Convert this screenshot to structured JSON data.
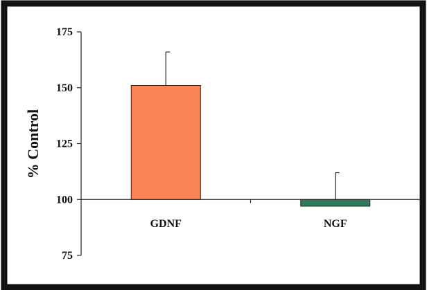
{
  "chart_data": {
    "type": "bar",
    "title": "",
    "xlabel": "",
    "ylabel": "% Control",
    "ylim": [
      75,
      175
    ],
    "yticks": [
      75,
      100,
      125,
      150,
      175
    ],
    "baseline": 100,
    "grid": false,
    "legend": "none",
    "categories": [
      "GDNF",
      "NGF"
    ],
    "values": [
      151,
      97
    ],
    "error_upper": [
      166,
      112
    ],
    "colors": [
      "#FA8458",
      "#2E7A5A"
    ],
    "edge_color": "#222222"
  }
}
